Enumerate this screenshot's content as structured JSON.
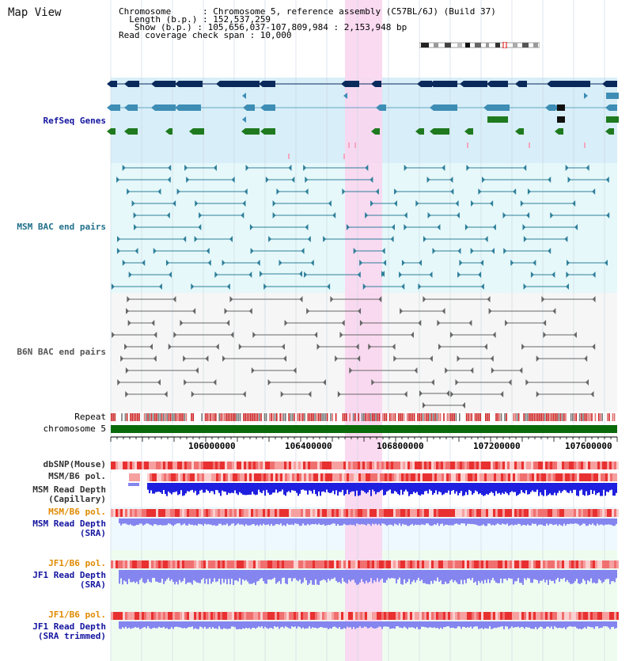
{
  "app_title": "Map View",
  "info": {
    "chromosome": "Chromosome      : Chromosome 5, reference assembly (C57BL/6J) (Build 37)",
    "length": "  Length (b.p.) : 152,537,259",
    "show": "   Show (b.p.) : 105,656,037-107,809,984 : 2,153,948 bp",
    "coverage": "Read coverage check span : 10,000"
  },
  "tracks": {
    "refseq": "RefSeq Genes",
    "msm_bac": "MSM BAC end pairs",
    "b6n_bac": "B6N BAC end pairs",
    "repeat": "Repeat",
    "chromosome": "chromosome 5",
    "dbsnp": "dbSNP(Mouse)",
    "msm_b6_pol_1": "MSM/B6 pol.",
    "msm_read_cap": "MSM Read Depth\n(Capillary)",
    "msm_b6_pol_2": "MSM/B6 pol.",
    "msm_read_sra": "MSM Read Depth\n(SRA)",
    "jf1_b6_pol_1": "JF1/B6 pol.",
    "jf1_read_sra": "JF1 Read Depth\n(SRA)",
    "jf1_b6_pol_2": "JF1/B6 pol.",
    "jf1_read_trim": "JF1 Read Depth\n(SRA trimmed)"
  },
  "axis": {
    "ticks": [
      "106000000",
      "106400000",
      "106800000",
      "107200000",
      "107600000"
    ]
  },
  "colors": {
    "highlight": "#f9d6f0",
    "refseq_bg": "#d8eef8",
    "msm_bg": "#e6f8fa",
    "gene_dark": "#0b2a5c",
    "gene_mid": "#3d8db5",
    "gene_green": "#1f7a1f",
    "msm_pair": "#2e7f9a",
    "b6n_pair": "#666666",
    "chrom": "#0a6a0a",
    "blue_depth": "#1f1fe0",
    "light_depth": "#8585f0",
    "label_blue": "#1414a0",
    "label_teal": "#1f6f8a",
    "label_orange": "#e08a00"
  }
}
